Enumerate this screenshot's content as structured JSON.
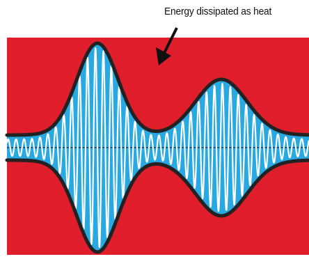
{
  "annotation": {
    "label": "Energy dissipated as heat"
  },
  "colors": {
    "background": "#e01e2b",
    "envelope_fill": "#29a9e1",
    "envelope_outline": "#222222",
    "waveform": "#ffffff",
    "axis": "#111111",
    "arrow": "#111111"
  }
}
